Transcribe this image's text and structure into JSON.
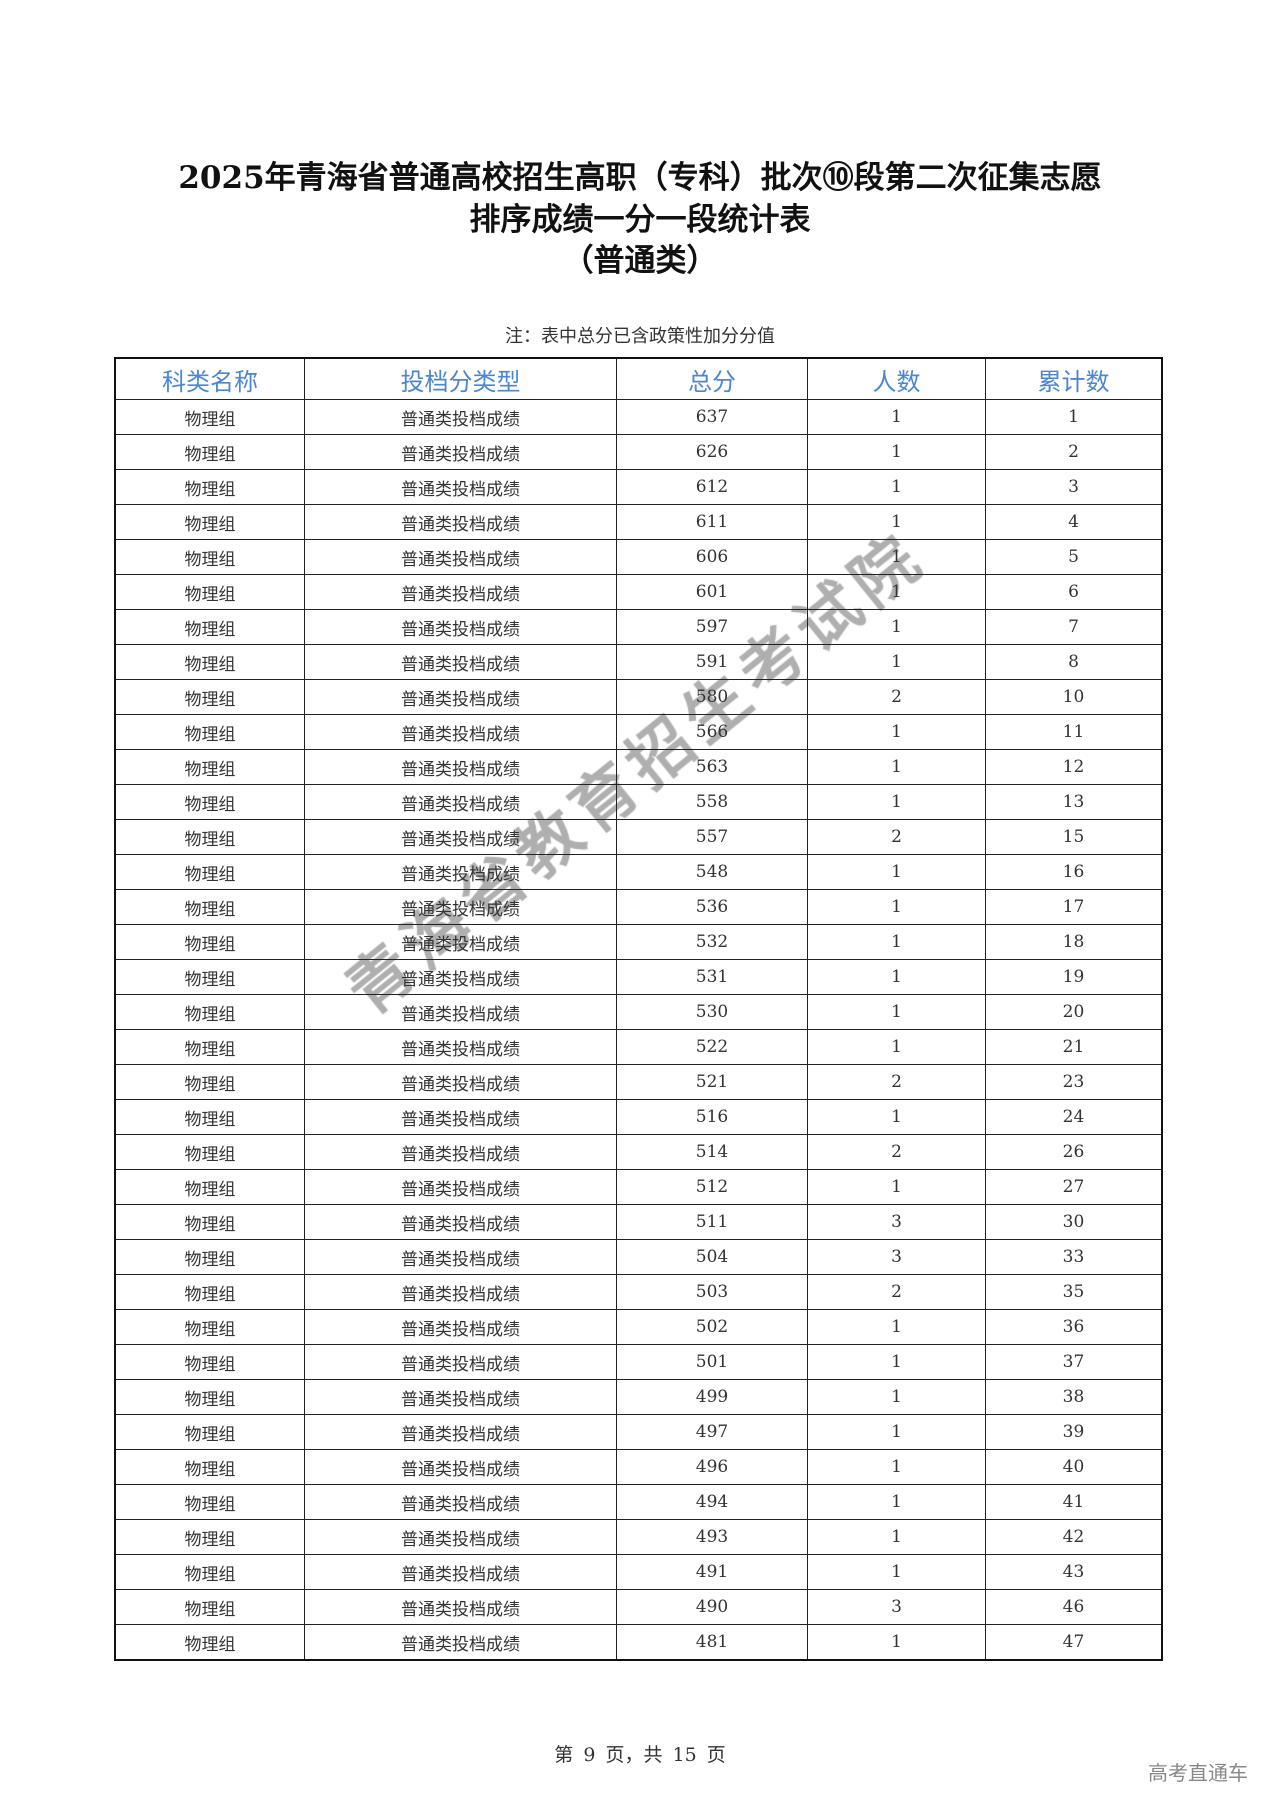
{
  "title": {
    "line1": "2025年青海省普通高校招生高职（专科）批次⑩段第二次征集志愿",
    "line2": "排序成绩一分一段统计表",
    "line3": "（普通类）"
  },
  "note": "注：表中总分已含政策性加分分值",
  "table": {
    "header_color": "#4a86d4",
    "columns": [
      "科类名称",
      "投档分类型",
      "总分",
      "人数",
      "累计数"
    ],
    "rows": [
      [
        "物理组",
        "普通类投档成绩",
        "637",
        "1",
        "1"
      ],
      [
        "物理组",
        "普通类投档成绩",
        "626",
        "1",
        "2"
      ],
      [
        "物理组",
        "普通类投档成绩",
        "612",
        "1",
        "3"
      ],
      [
        "物理组",
        "普通类投档成绩",
        "611",
        "1",
        "4"
      ],
      [
        "物理组",
        "普通类投档成绩",
        "606",
        "1",
        "5"
      ],
      [
        "物理组",
        "普通类投档成绩",
        "601",
        "1",
        "6"
      ],
      [
        "物理组",
        "普通类投档成绩",
        "597",
        "1",
        "7"
      ],
      [
        "物理组",
        "普通类投档成绩",
        "591",
        "1",
        "8"
      ],
      [
        "物理组",
        "普通类投档成绩",
        "580",
        "2",
        "10"
      ],
      [
        "物理组",
        "普通类投档成绩",
        "566",
        "1",
        "11"
      ],
      [
        "物理组",
        "普通类投档成绩",
        "563",
        "1",
        "12"
      ],
      [
        "物理组",
        "普通类投档成绩",
        "558",
        "1",
        "13"
      ],
      [
        "物理组",
        "普通类投档成绩",
        "557",
        "2",
        "15"
      ],
      [
        "物理组",
        "普通类投档成绩",
        "548",
        "1",
        "16"
      ],
      [
        "物理组",
        "普通类投档成绩",
        "536",
        "1",
        "17"
      ],
      [
        "物理组",
        "普通类投档成绩",
        "532",
        "1",
        "18"
      ],
      [
        "物理组",
        "普通类投档成绩",
        "531",
        "1",
        "19"
      ],
      [
        "物理组",
        "普通类投档成绩",
        "530",
        "1",
        "20"
      ],
      [
        "物理组",
        "普通类投档成绩",
        "522",
        "1",
        "21"
      ],
      [
        "物理组",
        "普通类投档成绩",
        "521",
        "2",
        "23"
      ],
      [
        "物理组",
        "普通类投档成绩",
        "516",
        "1",
        "24"
      ],
      [
        "物理组",
        "普通类投档成绩",
        "514",
        "2",
        "26"
      ],
      [
        "物理组",
        "普通类投档成绩",
        "512",
        "1",
        "27"
      ],
      [
        "物理组",
        "普通类投档成绩",
        "511",
        "3",
        "30"
      ],
      [
        "物理组",
        "普通类投档成绩",
        "504",
        "3",
        "33"
      ],
      [
        "物理组",
        "普通类投档成绩",
        "503",
        "2",
        "35"
      ],
      [
        "物理组",
        "普通类投档成绩",
        "502",
        "1",
        "36"
      ],
      [
        "物理组",
        "普通类投档成绩",
        "501",
        "1",
        "37"
      ],
      [
        "物理组",
        "普通类投档成绩",
        "499",
        "1",
        "38"
      ],
      [
        "物理组",
        "普通类投档成绩",
        "497",
        "1",
        "39"
      ],
      [
        "物理组",
        "普通类投档成绩",
        "496",
        "1",
        "40"
      ],
      [
        "物理组",
        "普通类投档成绩",
        "494",
        "1",
        "41"
      ],
      [
        "物理组",
        "普通类投档成绩",
        "493",
        "1",
        "42"
      ],
      [
        "物理组",
        "普通类投档成绩",
        "491",
        "1",
        "43"
      ],
      [
        "物理组",
        "普通类投档成绩",
        "490",
        "3",
        "46"
      ],
      [
        "物理组",
        "普通类投档成绩",
        "481",
        "1",
        "47"
      ]
    ]
  },
  "watermark": "青海省教育招生考试院",
  "footer": "第 9 页，共 15 页",
  "brand": "高考直通车"
}
